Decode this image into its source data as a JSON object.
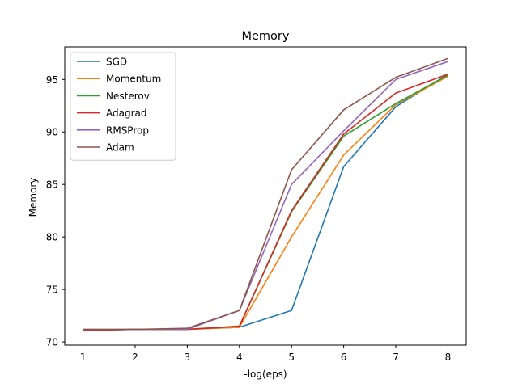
{
  "chart_data": {
    "type": "line",
    "title": "Memory",
    "xlabel": "-log(eps)",
    "ylabel": "Memory",
    "xlim": [
      0.65,
      8.35
    ],
    "ylim": [
      69.7,
      98.1
    ],
    "xticks": [
      1,
      2,
      3,
      4,
      5,
      6,
      7,
      8
    ],
    "yticks": [
      70,
      75,
      80,
      85,
      90,
      95
    ],
    "grid": false,
    "legend_position": "top-left",
    "x": [
      1,
      2,
      3,
      4,
      5,
      6,
      7,
      8
    ],
    "series": [
      {
        "name": "SGD",
        "color": "#1f77b4",
        "values": [
          71.1,
          71.2,
          71.2,
          71.4,
          73.0,
          86.7,
          92.4,
          95.5
        ]
      },
      {
        "name": "Momentum",
        "color": "#ff7f0e",
        "values": [
          71.1,
          71.2,
          71.2,
          71.4,
          80.0,
          87.8,
          92.6,
          95.3
        ]
      },
      {
        "name": "Nesterov",
        "color": "#2ca02c",
        "values": [
          71.1,
          71.2,
          71.2,
          71.5,
          82.4,
          89.6,
          92.7,
          95.4
        ]
      },
      {
        "name": "Adagrad",
        "color": "#d62728",
        "values": [
          71.1,
          71.2,
          71.2,
          71.5,
          82.5,
          89.8,
          93.7,
          95.5
        ]
      },
      {
        "name": "RMSProp",
        "color": "#9467bd",
        "values": [
          71.2,
          71.2,
          71.2,
          73.0,
          85.0,
          90.1,
          95.0,
          96.7
        ]
      },
      {
        "name": "Adam",
        "color": "#8c564b",
        "values": [
          71.2,
          71.2,
          71.3,
          73.0,
          86.4,
          92.1,
          95.2,
          97.0
        ]
      }
    ]
  }
}
